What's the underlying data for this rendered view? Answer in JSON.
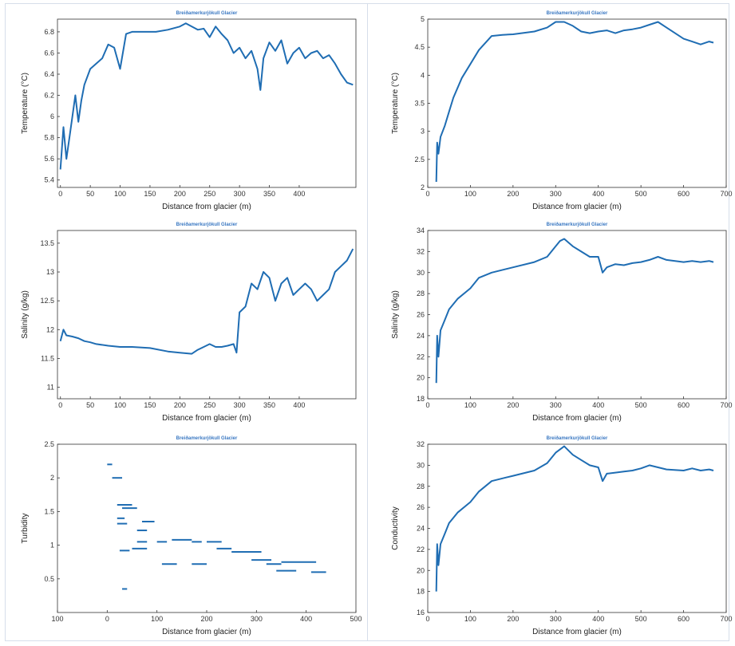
{
  "colors": {
    "series": "#1f6db3",
    "title": "#3a78c2",
    "frame": "#d6deea"
  },
  "chart_data": [
    {
      "id": "temp-left",
      "type": "line",
      "title": "Breiðamerkurjökull Glacier",
      "xlabel": "Distance from glacier (m)",
      "ylabel": "Temperature (°C)",
      "xlim": [
        -5,
        495
      ],
      "ylim": [
        5.33,
        6.92
      ],
      "xticks": [
        0,
        50,
        100,
        150,
        200,
        250,
        300,
        350,
        400
      ],
      "yticks": [
        5.4,
        5.6,
        5.8,
        6,
        6.2,
        6.4,
        6.6,
        6.8
      ],
      "x": [
        0,
        5,
        10,
        15,
        20,
        25,
        30,
        35,
        40,
        50,
        60,
        70,
        80,
        90,
        100,
        110,
        120,
        140,
        160,
        180,
        200,
        210,
        220,
        230,
        240,
        250,
        260,
        270,
        280,
        290,
        300,
        310,
        320,
        330,
        335,
        340,
        350,
        360,
        370,
        380,
        390,
        400,
        410,
        420,
        430,
        440,
        450,
        460,
        470,
        480,
        490
      ],
      "y": [
        5.5,
        5.9,
        5.6,
        5.8,
        6.0,
        6.2,
        5.95,
        6.15,
        6.3,
        6.45,
        6.5,
        6.55,
        6.68,
        6.65,
        6.45,
        6.78,
        6.8,
        6.8,
        6.8,
        6.82,
        6.85,
        6.88,
        6.85,
        6.82,
        6.83,
        6.75,
        6.85,
        6.78,
        6.72,
        6.6,
        6.65,
        6.55,
        6.62,
        6.45,
        6.25,
        6.55,
        6.7,
        6.62,
        6.72,
        6.5,
        6.6,
        6.65,
        6.55,
        6.6,
        6.62,
        6.55,
        6.58,
        6.5,
        6.4,
        6.32,
        6.3
      ]
    },
    {
      "id": "temp-right",
      "type": "line",
      "title": "Breiðamerkurjökull Glacier",
      "xlabel": "Distance from glacier (m)",
      "ylabel": "Temperature (°C)",
      "xlim": [
        0,
        700
      ],
      "ylim": [
        2,
        5
      ],
      "xticks": [
        0,
        100,
        200,
        300,
        400,
        500,
        600,
        700
      ],
      "yticks": [
        2,
        2.5,
        3,
        3.5,
        4,
        4.5,
        5
      ],
      "x": [
        20,
        22,
        25,
        30,
        40,
        50,
        60,
        80,
        100,
        120,
        150,
        175,
        200,
        250,
        280,
        300,
        320,
        340,
        360,
        380,
        400,
        420,
        440,
        460,
        480,
        500,
        520,
        540,
        560,
        580,
        600,
        620,
        640,
        660,
        670
      ],
      "y": [
        2.1,
        2.8,
        2.6,
        2.9,
        3.1,
        3.35,
        3.6,
        3.95,
        4.2,
        4.45,
        4.7,
        4.72,
        4.73,
        4.78,
        4.85,
        4.95,
        4.95,
        4.88,
        4.78,
        4.75,
        4.78,
        4.8,
        4.75,
        4.8,
        4.82,
        4.85,
        4.9,
        4.95,
        4.85,
        4.75,
        4.65,
        4.6,
        4.55,
        4.6,
        4.58
      ]
    },
    {
      "id": "salinity-left",
      "type": "line",
      "title": "Breiðamerkurjökull Glacier",
      "xlabel": "Distance from glacier (m)",
      "ylabel": "Salinity (g/kg)",
      "xlim": [
        -5,
        495
      ],
      "ylim": [
        10.8,
        13.72
      ],
      "xticks": [
        0,
        50,
        100,
        150,
        200,
        250,
        300,
        350,
        400
      ],
      "yticks": [
        11,
        11.5,
        12,
        12.5,
        13,
        13.5
      ],
      "ytick_labels": [
        "11",
        "11.5",
        "12",
        "12.5",
        "13",
        "13.5"
      ],
      "x": [
        0,
        5,
        10,
        20,
        30,
        40,
        50,
        60,
        80,
        100,
        120,
        150,
        180,
        200,
        220,
        230,
        240,
        250,
        260,
        270,
        280,
        290,
        295,
        300,
        310,
        320,
        330,
        340,
        350,
        360,
        370,
        380,
        390,
        400,
        410,
        420,
        430,
        440,
        450,
        460,
        470,
        480,
        490
      ],
      "y": [
        11.8,
        12.0,
        11.9,
        11.88,
        11.85,
        11.8,
        11.78,
        11.75,
        11.72,
        11.7,
        11.7,
        11.68,
        11.62,
        11.6,
        11.58,
        11.65,
        11.7,
        11.75,
        11.7,
        11.7,
        11.72,
        11.75,
        11.6,
        12.3,
        12.4,
        12.8,
        12.7,
        13.0,
        12.9,
        12.5,
        12.8,
        12.9,
        12.6,
        12.7,
        12.8,
        12.7,
        12.5,
        12.6,
        12.7,
        13.0,
        13.1,
        13.2,
        13.4
      ]
    },
    {
      "id": "salinity-right",
      "type": "line",
      "title": "Breiðamerkurjökull Glacier",
      "xlabel": "Distance from glacier (m)",
      "ylabel": "Salinity (g/kg)",
      "xlim": [
        0,
        700
      ],
      "ylim": [
        18,
        34
      ],
      "xticks": [
        0,
        100,
        200,
        300,
        400,
        500,
        600,
        700
      ],
      "yticks": [
        18,
        20,
        22,
        24,
        26,
        28,
        30,
        32,
        34
      ],
      "x": [
        20,
        22,
        25,
        30,
        40,
        50,
        70,
        100,
        120,
        150,
        180,
        200,
        250,
        280,
        300,
        310,
        320,
        340,
        360,
        380,
        400,
        410,
        420,
        440,
        460,
        480,
        500,
        520,
        540,
        560,
        600,
        620,
        640,
        660,
        670
      ],
      "y": [
        19.5,
        24,
        22,
        24.5,
        25.5,
        26.5,
        27.5,
        28.5,
        29.5,
        30,
        30.3,
        30.5,
        31,
        31.5,
        32.5,
        33,
        33.2,
        32.5,
        32,
        31.5,
        31.5,
        30,
        30.5,
        30.8,
        30.7,
        30.9,
        31,
        31.2,
        31.5,
        31.2,
        31,
        31.1,
        31,
        31.1,
        31
      ]
    },
    {
      "id": "turbidity-left",
      "type": "scatter",
      "title": "Breiðamerkurjökull Glacier",
      "xlabel": "Distance from glacier (m)",
      "ylabel": "Turbidity",
      "xlim": [
        -100,
        500
      ],
      "ylim": [
        0,
        2.5
      ],
      "xticks": [
        -100,
        0,
        100,
        200,
        300,
        400,
        500
      ],
      "xtick_labels": [
        "100",
        "0",
        "100",
        "200",
        "300",
        "400",
        "500"
      ],
      "yticks": [
        0.5,
        1,
        1.5,
        2,
        2.5
      ],
      "segments": [
        {
          "x": [
            0,
            10
          ],
          "y": 2.2
        },
        {
          "x": [
            10,
            30
          ],
          "y": 2.0
        },
        {
          "x": [
            20,
            50
          ],
          "y": 1.6
        },
        {
          "x": [
            30,
            60
          ],
          "y": 1.55
        },
        {
          "x": [
            20,
            35
          ],
          "y": 1.4
        },
        {
          "x": [
            20,
            40
          ],
          "y": 1.32
        },
        {
          "x": [
            60,
            80
          ],
          "y": 1.22
        },
        {
          "x": [
            70,
            95
          ],
          "y": 1.35
        },
        {
          "x": [
            60,
            80
          ],
          "y": 1.05
        },
        {
          "x": [
            50,
            80
          ],
          "y": 0.95
        },
        {
          "x": [
            25,
            45
          ],
          "y": 0.92
        },
        {
          "x": [
            100,
            120
          ],
          "y": 1.05
        },
        {
          "x": [
            130,
            170
          ],
          "y": 1.08
        },
        {
          "x": [
            170,
            190
          ],
          "y": 1.05
        },
        {
          "x": [
            200,
            230
          ],
          "y": 1.05
        },
        {
          "x": [
            110,
            140
          ],
          "y": 0.72
        },
        {
          "x": [
            170,
            200
          ],
          "y": 0.72
        },
        {
          "x": [
            220,
            250
          ],
          "y": 0.95
        },
        {
          "x": [
            250,
            310
          ],
          "y": 0.9
        },
        {
          "x": [
            290,
            330
          ],
          "y": 0.78
        },
        {
          "x": [
            320,
            350
          ],
          "y": 0.72
        },
        {
          "x": [
            340,
            380
          ],
          "y": 0.62
        },
        {
          "x": [
            350,
            420
          ],
          "y": 0.75
        },
        {
          "x": [
            410,
            440
          ],
          "y": 0.6
        },
        {
          "x": [
            30,
            40
          ],
          "y": 0.35
        }
      ]
    },
    {
      "id": "conductivity-right",
      "type": "line",
      "title": "Breiðamerkurjökull Glacier",
      "xlabel": "Distance from glacier (m)",
      "ylabel": "Conductivity",
      "xlim": [
        0,
        700
      ],
      "ylim": [
        16,
        32
      ],
      "xticks": [
        0,
        100,
        200,
        300,
        400,
        500,
        600,
        700
      ],
      "yticks": [
        16,
        18,
        20,
        22,
        24,
        26,
        28,
        30,
        32
      ],
      "x": [
        20,
        22,
        25,
        30,
        40,
        50,
        70,
        100,
        120,
        150,
        180,
        200,
        250,
        280,
        300,
        320,
        340,
        360,
        380,
        400,
        410,
        420,
        440,
        460,
        480,
        500,
        520,
        540,
        560,
        600,
        620,
        640,
        660,
        670
      ],
      "y": [
        18,
        22.5,
        20.5,
        22.5,
        23.5,
        24.5,
        25.5,
        26.5,
        27.5,
        28.5,
        28.8,
        29,
        29.5,
        30.2,
        31.2,
        31.8,
        31,
        30.5,
        30,
        29.8,
        28.5,
        29.2,
        29.3,
        29.4,
        29.5,
        29.7,
        30,
        29.8,
        29.6,
        29.5,
        29.7,
        29.5,
        29.6,
        29.5
      ]
    }
  ]
}
